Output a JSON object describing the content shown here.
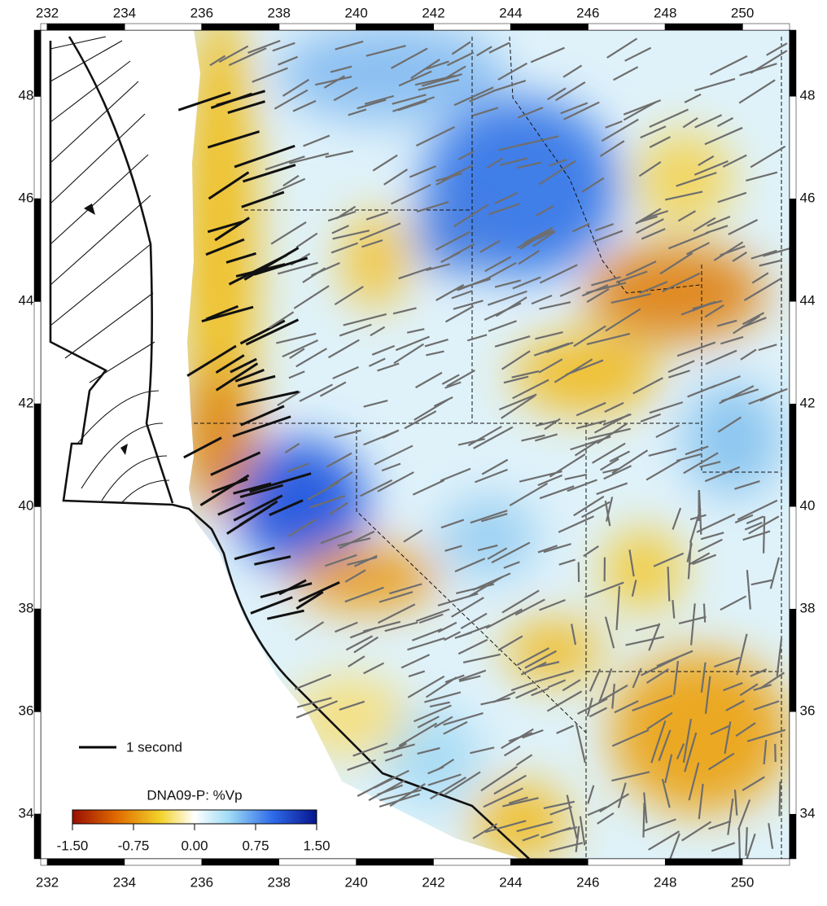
{
  "map": {
    "xlim": [
      231.83,
      251.22
    ],
    "ylim": [
      33.13,
      49.29
    ],
    "xticks": [
      232,
      234,
      236,
      238,
      240,
      242,
      244,
      246,
      248,
      250
    ],
    "yticks": [
      34,
      36,
      38,
      40,
      42,
      44,
      46,
      48
    ],
    "legend_label": "1 second",
    "colorbar": {
      "title": "DNA09-P: %Vp",
      "clim": [
        -1.5,
        1.5
      ],
      "ticks": [
        {
          "value": -1.5,
          "label": "-1.50"
        },
        {
          "value": -0.75,
          "label": "-0.75"
        },
        {
          "value": 0,
          "label": "0.00"
        },
        {
          "value": 0.75,
          "label": "0.75"
        },
        {
          "value": 1.5,
          "label": "1.50"
        }
      ]
    }
  }
}
